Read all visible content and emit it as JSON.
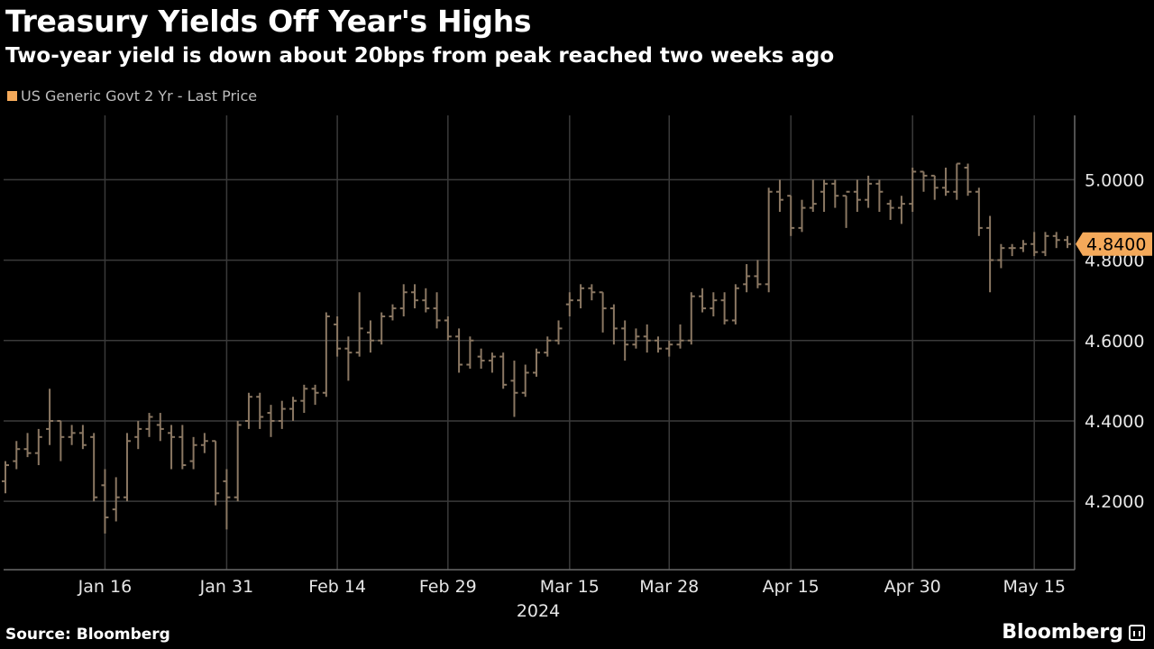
{
  "title": "Treasury Yields Off Year's Highs",
  "subtitle": "Two-year yield is down about 20bps from peak reached two weeks ago",
  "source": "Source: Bloomberg",
  "brand": "Bloomberg",
  "colors": {
    "background": "#000000",
    "series": "#f4a95a",
    "bar": "#8a7762",
    "grid": "#3a3a3a"
  },
  "chart_data": {
    "type": "line",
    "style": "ohlc-bars",
    "series": [
      {
        "name": "US Generic Govt 2 Yr - Last Price"
      }
    ],
    "x_tick_labels": [
      "Jan 16",
      "Jan 31",
      "Feb 14",
      "Feb 29",
      "Mar 15",
      "Mar 28",
      "Apr 15",
      "Apr 30",
      "May 15"
    ],
    "x_year_label": "2024",
    "y_tick_labels": [
      "4.2000",
      "4.4000",
      "4.6000",
      "4.8000",
      "5.0000"
    ],
    "y_ticks": [
      4.2,
      4.4,
      4.6,
      4.8,
      5.0
    ],
    "ylim": [
      4.03,
      5.16
    ],
    "last_value": 4.84,
    "last_value_label": "4.8400",
    "grid": true,
    "legend": "top-left",
    "dates": [
      "2024-01-02",
      "2024-01-03",
      "2024-01-04",
      "2024-01-05",
      "2024-01-08",
      "2024-01-09",
      "2024-01-10",
      "2024-01-11",
      "2024-01-12",
      "2024-01-16",
      "2024-01-17",
      "2024-01-18",
      "2024-01-19",
      "2024-01-22",
      "2024-01-23",
      "2024-01-24",
      "2024-01-25",
      "2024-01-26",
      "2024-01-29",
      "2024-01-30",
      "2024-01-31",
      "2024-02-01",
      "2024-02-02",
      "2024-02-05",
      "2024-02-06",
      "2024-02-07",
      "2024-02-08",
      "2024-02-09",
      "2024-02-12",
      "2024-02-13",
      "2024-02-14",
      "2024-02-15",
      "2024-02-16",
      "2024-02-20",
      "2024-02-21",
      "2024-02-22",
      "2024-02-23",
      "2024-02-26",
      "2024-02-27",
      "2024-02-28",
      "2024-02-29",
      "2024-03-01",
      "2024-03-04",
      "2024-03-05",
      "2024-03-06",
      "2024-03-07",
      "2024-03-08",
      "2024-03-11",
      "2024-03-12",
      "2024-03-13",
      "2024-03-14",
      "2024-03-15",
      "2024-03-18",
      "2024-03-19",
      "2024-03-20",
      "2024-03-21",
      "2024-03-22",
      "2024-03-25",
      "2024-03-26",
      "2024-03-27",
      "2024-03-28",
      "2024-04-01",
      "2024-04-02",
      "2024-04-03",
      "2024-04-04",
      "2024-04-05",
      "2024-04-08",
      "2024-04-09",
      "2024-04-10",
      "2024-04-11",
      "2024-04-12",
      "2024-04-15",
      "2024-04-16",
      "2024-04-17",
      "2024-04-18",
      "2024-04-19",
      "2024-04-22",
      "2024-04-23",
      "2024-04-24",
      "2024-04-25",
      "2024-04-26",
      "2024-04-29",
      "2024-04-30",
      "2024-05-01",
      "2024-05-02",
      "2024-05-03",
      "2024-05-06",
      "2024-05-07",
      "2024-05-08",
      "2024-05-09",
      "2024-05-10",
      "2024-05-13",
      "2024-05-14",
      "2024-05-15",
      "2024-05-16"
    ],
    "ohlc": [
      [
        4.25,
        4.3,
        4.22,
        4.29
      ],
      [
        4.3,
        4.35,
        4.28,
        4.33
      ],
      [
        4.33,
        4.37,
        4.31,
        4.32
      ],
      [
        4.32,
        4.38,
        4.29,
        4.36
      ],
      [
        4.38,
        4.48,
        4.34,
        4.4
      ],
      [
        4.4,
        4.4,
        4.3,
        4.36
      ],
      [
        4.36,
        4.39,
        4.34,
        4.37
      ],
      [
        4.37,
        4.39,
        4.33,
        4.34
      ],
      [
        4.36,
        4.37,
        4.2,
        4.21
      ],
      [
        4.24,
        4.28,
        4.12,
        4.16
      ],
      [
        4.18,
        4.26,
        4.15,
        4.21
      ],
      [
        4.21,
        4.37,
        4.2,
        4.35
      ],
      [
        4.36,
        4.4,
        4.33,
        4.38
      ],
      [
        4.38,
        4.42,
        4.36,
        4.41
      ],
      [
        4.39,
        4.42,
        4.35,
        4.38
      ],
      [
        4.37,
        4.39,
        4.28,
        4.36
      ],
      [
        4.36,
        4.39,
        4.28,
        4.29
      ],
      [
        4.3,
        4.36,
        4.28,
        4.34
      ],
      [
        4.34,
        4.37,
        4.32,
        4.35
      ],
      [
        4.35,
        4.35,
        4.19,
        4.22
      ],
      [
        4.25,
        4.28,
        4.13,
        4.21
      ],
      [
        4.21,
        4.4,
        4.2,
        4.39
      ],
      [
        4.4,
        4.47,
        4.38,
        4.46
      ],
      [
        4.46,
        4.47,
        4.38,
        4.41
      ],
      [
        4.42,
        4.44,
        4.36,
        4.4
      ],
      [
        4.4,
        4.45,
        4.38,
        4.43
      ],
      [
        4.43,
        4.46,
        4.4,
        4.45
      ],
      [
        4.45,
        4.49,
        4.42,
        4.48
      ],
      [
        4.48,
        4.49,
        4.44,
        4.47
      ],
      [
        4.47,
        4.67,
        4.46,
        4.66
      ],
      [
        4.64,
        4.66,
        4.56,
        4.58
      ],
      [
        4.58,
        4.61,
        4.5,
        4.57
      ],
      [
        4.57,
        4.72,
        4.56,
        4.63
      ],
      [
        4.62,
        4.65,
        4.57,
        4.6
      ],
      [
        4.6,
        4.67,
        4.59,
        4.66
      ],
      [
        4.66,
        4.69,
        4.65,
        4.68
      ],
      [
        4.68,
        4.74,
        4.66,
        4.72
      ],
      [
        4.72,
        4.74,
        4.68,
        4.7
      ],
      [
        4.7,
        4.73,
        4.67,
        4.68
      ],
      [
        4.68,
        4.72,
        4.63,
        4.65
      ],
      [
        4.65,
        4.66,
        4.6,
        4.61
      ],
      [
        4.61,
        4.63,
        4.52,
        4.54
      ],
      [
        4.54,
        4.61,
        4.53,
        4.6
      ],
      [
        4.56,
        4.58,
        4.53,
        4.55
      ],
      [
        4.55,
        4.57,
        4.52,
        4.56
      ],
      [
        4.56,
        4.57,
        4.48,
        4.49
      ],
      [
        4.5,
        4.55,
        4.41,
        4.47
      ],
      [
        4.47,
        4.54,
        4.46,
        4.52
      ],
      [
        4.52,
        4.58,
        4.51,
        4.57
      ],
      [
        4.57,
        4.61,
        4.56,
        4.6
      ],
      [
        4.6,
        4.65,
        4.59,
        4.63
      ],
      [
        4.69,
        4.72,
        4.66,
        4.7
      ],
      [
        4.7,
        4.74,
        4.68,
        4.73
      ],
      [
        4.73,
        4.74,
        4.7,
        4.72
      ],
      [
        4.72,
        4.72,
        4.62,
        4.68
      ],
      [
        4.68,
        4.69,
        4.59,
        4.63
      ],
      [
        4.63,
        4.65,
        4.55,
        4.59
      ],
      [
        4.59,
        4.63,
        4.58,
        4.61
      ],
      [
        4.61,
        4.64,
        4.57,
        4.6
      ],
      [
        4.6,
        4.61,
        4.57,
        4.58
      ],
      [
        4.58,
        4.6,
        4.56,
        4.59
      ],
      [
        4.59,
        4.64,
        4.58,
        4.6
      ],
      [
        4.6,
        4.72,
        4.59,
        4.71
      ],
      [
        4.71,
        4.73,
        4.67,
        4.68
      ],
      [
        4.68,
        4.72,
        4.66,
        4.7
      ],
      [
        4.7,
        4.72,
        4.64,
        4.65
      ],
      [
        4.65,
        4.74,
        4.64,
        4.73
      ],
      [
        4.74,
        4.79,
        4.72,
        4.76
      ],
      [
        4.76,
        4.8,
        4.73,
        4.74
      ],
      [
        4.74,
        4.98,
        4.72,
        4.97
      ],
      [
        4.97,
        5.0,
        4.92,
        4.95
      ],
      [
        4.96,
        4.96,
        4.86,
        4.88
      ],
      [
        4.88,
        4.95,
        4.87,
        4.93
      ],
      [
        4.93,
        5.0,
        4.92,
        4.94
      ],
      [
        4.97,
        5.0,
        4.92,
        4.99
      ],
      [
        4.99,
        5.0,
        4.93,
        4.96
      ],
      [
        4.96,
        4.96,
        4.88,
        4.97
      ],
      [
        4.97,
        5.0,
        4.92,
        4.95
      ],
      [
        4.95,
        5.01,
        4.93,
        4.99
      ],
      [
        4.99,
        5.0,
        4.92,
        4.97
      ],
      [
        4.94,
        4.95,
        4.9,
        4.93
      ],
      [
        4.93,
        4.96,
        4.89,
        4.94
      ],
      [
        4.94,
        5.03,
        4.92,
        5.02
      ],
      [
        5.02,
        5.02,
        4.97,
        5.01
      ],
      [
        5.01,
        5.01,
        4.95,
        4.98
      ],
      [
        4.98,
        5.03,
        4.96,
        4.97
      ],
      [
        4.97,
        5.04,
        4.95,
        5.04
      ],
      [
        5.03,
        5.04,
        4.96,
        4.97
      ],
      [
        4.97,
        4.98,
        4.86,
        4.88
      ],
      [
        4.88,
        4.91,
        4.72,
        4.8
      ],
      [
        4.8,
        4.84,
        4.78,
        4.83
      ],
      [
        4.83,
        4.84,
        4.81,
        4.83
      ],
      [
        4.83,
        4.85,
        4.82,
        4.84
      ],
      [
        4.84,
        4.87,
        4.81,
        4.82
      ],
      [
        4.82,
        4.87,
        4.81,
        4.86
      ],
      [
        4.86,
        4.87,
        4.83,
        4.85
      ],
      [
        4.85,
        4.86,
        4.83,
        4.84
      ]
    ]
  }
}
